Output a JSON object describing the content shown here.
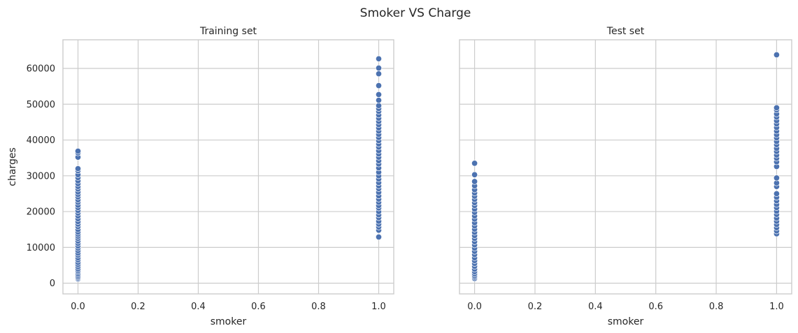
{
  "figure": {
    "suptitle": "Smoker VS Charge"
  },
  "chart_data": [
    {
      "type": "scatter",
      "title": "Training set",
      "xlabel": "smoker",
      "ylabel": "charges",
      "xlim": [
        -0.05,
        1.05
      ],
      "ylim": [
        -3000,
        68000
      ],
      "xticks": [
        0.0,
        0.2,
        0.4,
        0.6,
        0.8,
        1.0
      ],
      "xtick_labels": [
        "0.0",
        "0.2",
        "0.4",
        "0.6",
        "0.8",
        "1.0"
      ],
      "yticks": [
        0,
        10000,
        20000,
        30000,
        40000,
        50000,
        60000
      ],
      "ytick_labels": [
        "0",
        "10000",
        "20000",
        "30000",
        "40000",
        "50000",
        "60000"
      ],
      "grid": true,
      "color": "#4c72b0",
      "series": [
        {
          "x": 0,
          "y": [
            1200,
            1500,
            1800,
            2200,
            2600,
            3100,
            3500,
            4000,
            4600,
            5200,
            5800,
            6500,
            7100,
            7800,
            8400,
            9100,
            9800,
            10400,
            11100,
            11800,
            12500,
            13100,
            13700,
            14300,
            15000,
            15800,
            16500,
            17200,
            18000,
            18800,
            19600,
            20300,
            21100,
            21800,
            22600,
            23300,
            24100,
            24800,
            25500,
            26300,
            27000,
            27800,
            28600,
            29500,
            30300,
            31400,
            32000,
            35200,
            36400,
            36900
          ]
        },
        {
          "x": 1,
          "y": [
            12900,
            14800,
            15700,
            16500,
            17300,
            18300,
            19100,
            20000,
            21000,
            21700,
            22600,
            23500,
            24400,
            25400,
            26400,
            27200,
            28100,
            29100,
            30000,
            31000,
            32200,
            33300,
            34200,
            35200,
            36100,
            37000,
            38000,
            38900,
            39800,
            40700,
            41600,
            42500,
            43400,
            44300,
            45200,
            46100,
            47000,
            48000,
            48800,
            49600,
            51100,
            52700,
            55200,
            58500,
            60100,
            62700
          ]
        }
      ]
    },
    {
      "type": "scatter",
      "title": "Test set",
      "xlabel": "smoker",
      "ylabel": "",
      "xlim": [
        -0.05,
        1.05
      ],
      "ylim": [
        -3000,
        68000
      ],
      "xticks": [
        0.0,
        0.2,
        0.4,
        0.6,
        0.8,
        1.0
      ],
      "xtick_labels": [
        "0.0",
        "0.2",
        "0.4",
        "0.6",
        "0.8",
        "1.0"
      ],
      "yticks": [
        0,
        10000,
        20000,
        30000,
        40000,
        50000,
        60000
      ],
      "ytick_labels": [],
      "grid": true,
      "color": "#4c72b0",
      "series": [
        {
          "x": 0,
          "y": [
            1300,
            1700,
            2100,
            2600,
            3200,
            3900,
            4700,
            5500,
            6300,
            7100,
            8000,
            8900,
            9800,
            10700,
            11600,
            12500,
            13300,
            14200,
            15100,
            16000,
            16900,
            17900,
            18800,
            19800,
            20700,
            21700,
            22500,
            23400,
            24300,
            25200,
            26100,
            27200,
            28400,
            30300,
            33500
          ]
        },
        {
          "x": 1,
          "y": [
            13800,
            14600,
            15500,
            16400,
            17300,
            18200,
            19200,
            20100,
            21100,
            22000,
            23000,
            24000,
            25000,
            27000,
            28000,
            29400,
            32600,
            33900,
            34900,
            35800,
            36800,
            37700,
            38700,
            39600,
            40600,
            41500,
            42500,
            43500,
            44500,
            45400,
            46400,
            47300,
            48400,
            49000,
            63800
          ]
        }
      ]
    }
  ]
}
